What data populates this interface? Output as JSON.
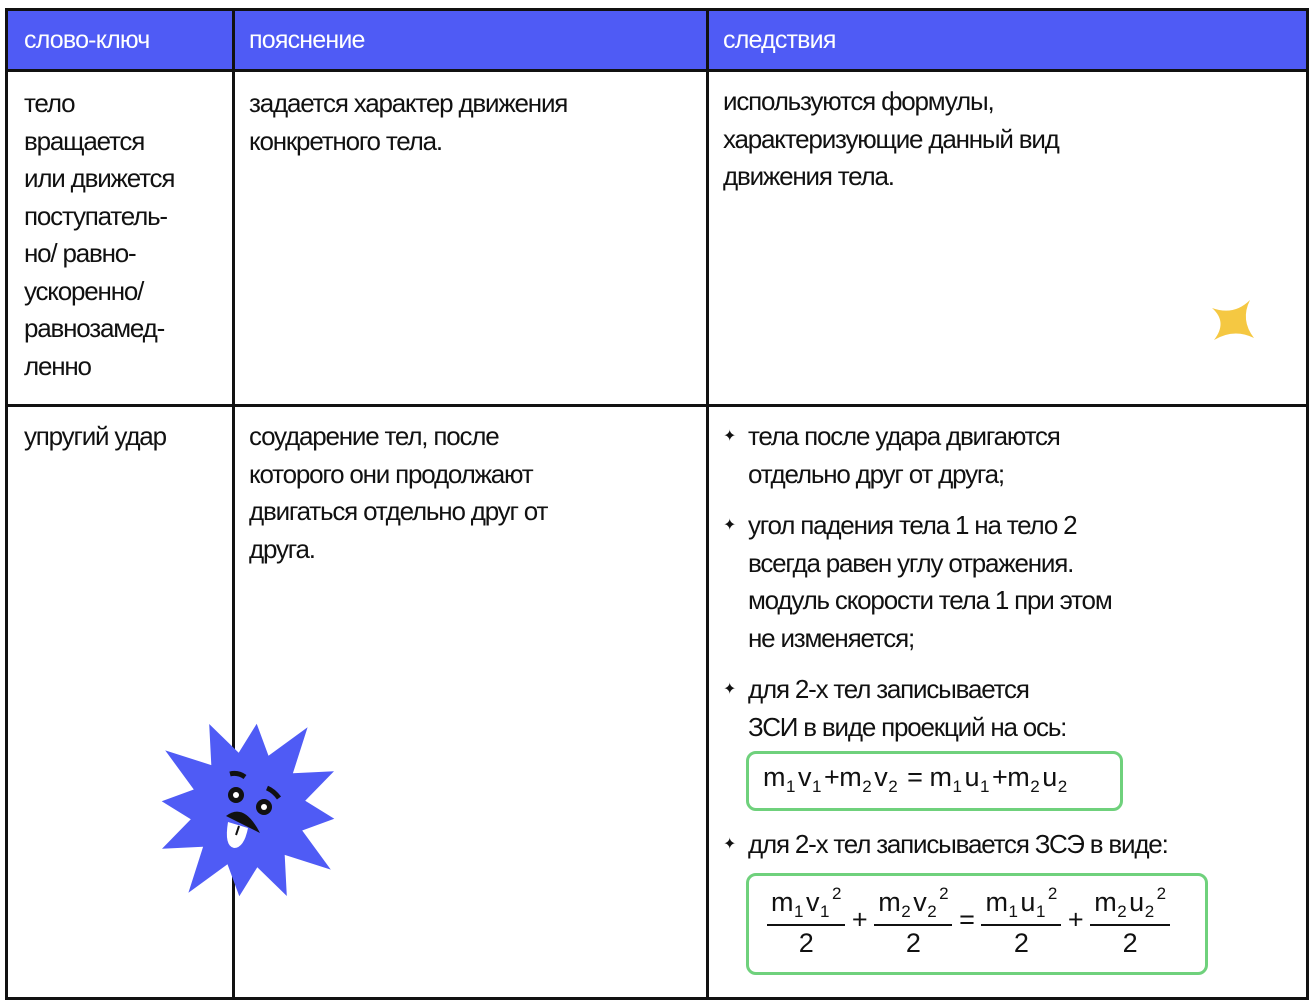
{
  "header": {
    "col1": "слово-ключ",
    "col2": "пояснение",
    "col3": "следствия"
  },
  "colors": {
    "header_bg": "#4f5bf5",
    "formula_border": "#6fd17c",
    "mascot": "#4f5bf5",
    "sparkle": "#f5c842"
  },
  "rows": [
    {
      "keyword": [
        "тело",
        "вращается",
        "или движется",
        "поступатель-",
        "но/ равно-",
        "ускоренно/",
        "равнозамед-",
        "ленно"
      ],
      "explanation": [
        "задается характер движения",
        "конкретного тела."
      ],
      "consequences": [
        "используются формулы,",
        "характеризующие данный вид",
        "движения тела."
      ]
    },
    {
      "keyword": [
        "упругий удар"
      ],
      "explanation": [
        "соударение тел, после",
        "которого они продолжают",
        "двигаться отдельно друг от",
        "друга."
      ],
      "bullets": [
        [
          "тела после удара двигаются",
          "отдельно друг от друга;"
        ],
        [
          "угол падения тела 1 на тело 2",
          "всегда равен углу отражения.",
          "модуль скорости тела 1 при этом",
          "не изменяется;"
        ],
        [
          "для 2-х тел записывается",
          "ЗСИ в виде проекций на ось:"
        ],
        [
          "для 2-х тел записывается ЗСЭ в виде:"
        ]
      ],
      "momentum": {
        "m": "m",
        "v": "v",
        "u": "u",
        "i1": "1",
        "i2": "2",
        "plus": "+",
        "eq": "="
      },
      "energy": {
        "sq": "2",
        "den": "2"
      }
    }
  ],
  "icons": {
    "bullet": "sparkle-bullet-icon",
    "mascot": "spiky-star-mascot",
    "sparkle": "four-point-star-icon"
  }
}
